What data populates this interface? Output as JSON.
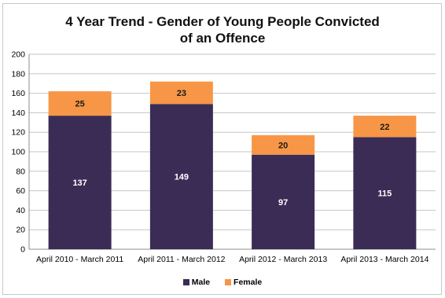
{
  "chart_data": {
    "type": "bar",
    "stacked": true,
    "title_lines": [
      "4 Year Trend - Gender of Young People Convicted",
      "of an Offence"
    ],
    "categories": [
      "April 2010 - March 2011",
      "April 2011 - March 2012",
      "April 2012 - March 2013",
      "April 2013 - March 2014"
    ],
    "series": [
      {
        "name": "Male",
        "values": [
          137,
          149,
          97,
          115
        ],
        "color": "#3b2c55"
      },
      {
        "name": "Female",
        "values": [
          25,
          23,
          20,
          22
        ],
        "color": "#f79646"
      }
    ],
    "ylim": [
      0,
      200
    ],
    "yticks": [
      "0",
      "20",
      "40",
      "60",
      "80",
      "100",
      "120",
      "140",
      "160",
      "180",
      "200"
    ],
    "grid": true,
    "legend_position": "bottom"
  }
}
